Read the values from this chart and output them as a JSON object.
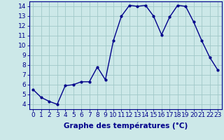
{
  "x": [
    0,
    1,
    2,
    3,
    4,
    5,
    6,
    7,
    8,
    9,
    10,
    11,
    12,
    13,
    14,
    15,
    16,
    17,
    18,
    19,
    20,
    21,
    22,
    23
  ],
  "y": [
    5.5,
    4.7,
    4.3,
    4.0,
    5.9,
    6.0,
    6.3,
    6.3,
    7.8,
    6.5,
    10.5,
    13.0,
    14.1,
    14.0,
    14.1,
    13.0,
    11.1,
    12.9,
    14.1,
    14.0,
    12.4,
    10.5,
    8.8,
    7.5
  ],
  "line_color": "#00008b",
  "marker": "o",
  "marker_size": 2.0,
  "line_width": 1.0,
  "xlabel": "Graphe des températures (°C)",
  "xlabel_fontsize": 7.5,
  "bg_color": "#cce8e8",
  "grid_color": "#a0c8c8",
  "xlim": [
    -0.5,
    23.5
  ],
  "ylim": [
    3.5,
    14.5
  ],
  "xtick_labels": [
    "0",
    "1",
    "2",
    "3",
    "4",
    "5",
    "6",
    "7",
    "8",
    "9",
    "10",
    "11",
    "12",
    "13",
    "14",
    "15",
    "16",
    "17",
    "18",
    "19",
    "20",
    "21",
    "22",
    "23"
  ],
  "ytick_min": 4,
  "ytick_max": 14,
  "ytick_step": 1,
  "tick_fontsize": 6.5,
  "axis_color": "#00008b",
  "spine_color": "#00008b"
}
